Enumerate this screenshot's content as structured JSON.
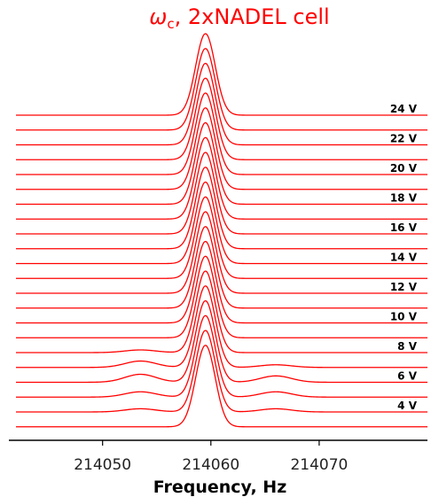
{
  "chart_data": {
    "type": "line",
    "title": {
      "symbol": "ω",
      "subscript": "c",
      "rest": ", 2xNADEL cell"
    },
    "xlabel": "Frequency, Hz",
    "ylabel": "",
    "xlim": [
      214042,
      214080
    ],
    "x_ticks": [
      214050,
      214060,
      214070
    ],
    "x_tick_labels": [
      "214050",
      "214060",
      "214070"
    ],
    "grid": false,
    "colors": {
      "trace": "#ff0000",
      "title": "#ff0000",
      "axis": "#000000"
    },
    "trace_count": 22,
    "trace_labels": [
      "24 V",
      "22 V",
      "20 V",
      "18 V",
      "16 V",
      "14 V",
      "12 V",
      "10 V",
      "8 V",
      "6 V",
      "4 V"
    ],
    "peak_center_hz": 214059.5,
    "peak_width_hz": 0.9,
    "sideband_hz": [
      214053.5,
      214066.0
    ],
    "series": [
      {
        "voltage_v": 24,
        "peak": 1.0,
        "side_low": 0.0,
        "side_high": 0.0
      },
      {
        "voltage_v": 23,
        "peak": 1.0,
        "side_low": 0.0,
        "side_high": 0.0
      },
      {
        "voltage_v": 22,
        "peak": 1.0,
        "side_low": 0.0,
        "side_high": 0.0
      },
      {
        "voltage_v": 21,
        "peak": 1.0,
        "side_low": 0.0,
        "side_high": 0.0
      },
      {
        "voltage_v": 20,
        "peak": 1.0,
        "side_low": 0.0,
        "side_high": 0.0
      },
      {
        "voltage_v": 19,
        "peak": 1.0,
        "side_low": 0.0,
        "side_high": 0.0
      },
      {
        "voltage_v": 18,
        "peak": 1.0,
        "side_low": 0.0,
        "side_high": 0.0
      },
      {
        "voltage_v": 17,
        "peak": 1.0,
        "side_low": 0.0,
        "side_high": 0.0
      },
      {
        "voltage_v": 16,
        "peak": 1.0,
        "side_low": 0.0,
        "side_high": 0.0
      },
      {
        "voltage_v": 15,
        "peak": 1.0,
        "side_low": 0.0,
        "side_high": 0.0
      },
      {
        "voltage_v": 14,
        "peak": 1.0,
        "side_low": 0.0,
        "side_high": 0.0
      },
      {
        "voltage_v": 13,
        "peak": 1.0,
        "side_low": 0.0,
        "side_high": 0.0
      },
      {
        "voltage_v": 12,
        "peak": 1.0,
        "side_low": 0.0,
        "side_high": 0.0
      },
      {
        "voltage_v": 11,
        "peak": 1.0,
        "side_low": 0.0,
        "side_high": 0.0
      },
      {
        "voltage_v": 10,
        "peak": 1.0,
        "side_low": 0.0,
        "side_high": 0.0
      },
      {
        "voltage_v": 9,
        "peak": 1.0,
        "side_low": 0.0,
        "side_high": 0.0
      },
      {
        "voltage_v": 8,
        "peak": 1.0,
        "side_low": 0.05,
        "side_high": 0.0
      },
      {
        "voltage_v": 7,
        "peak": 1.0,
        "side_low": 0.12,
        "side_high": 0.05
      },
      {
        "voltage_v": 6,
        "peak": 1.0,
        "side_low": 0.15,
        "side_high": 0.12
      },
      {
        "voltage_v": 5,
        "peak": 1.0,
        "side_low": 0.1,
        "side_high": 0.1
      },
      {
        "voltage_v": 4,
        "peak": 1.0,
        "side_low": 0.06,
        "side_high": 0.06
      },
      {
        "voltage_v": 3,
        "peak": 1.0,
        "side_low": 0.0,
        "side_high": 0.0
      }
    ]
  }
}
